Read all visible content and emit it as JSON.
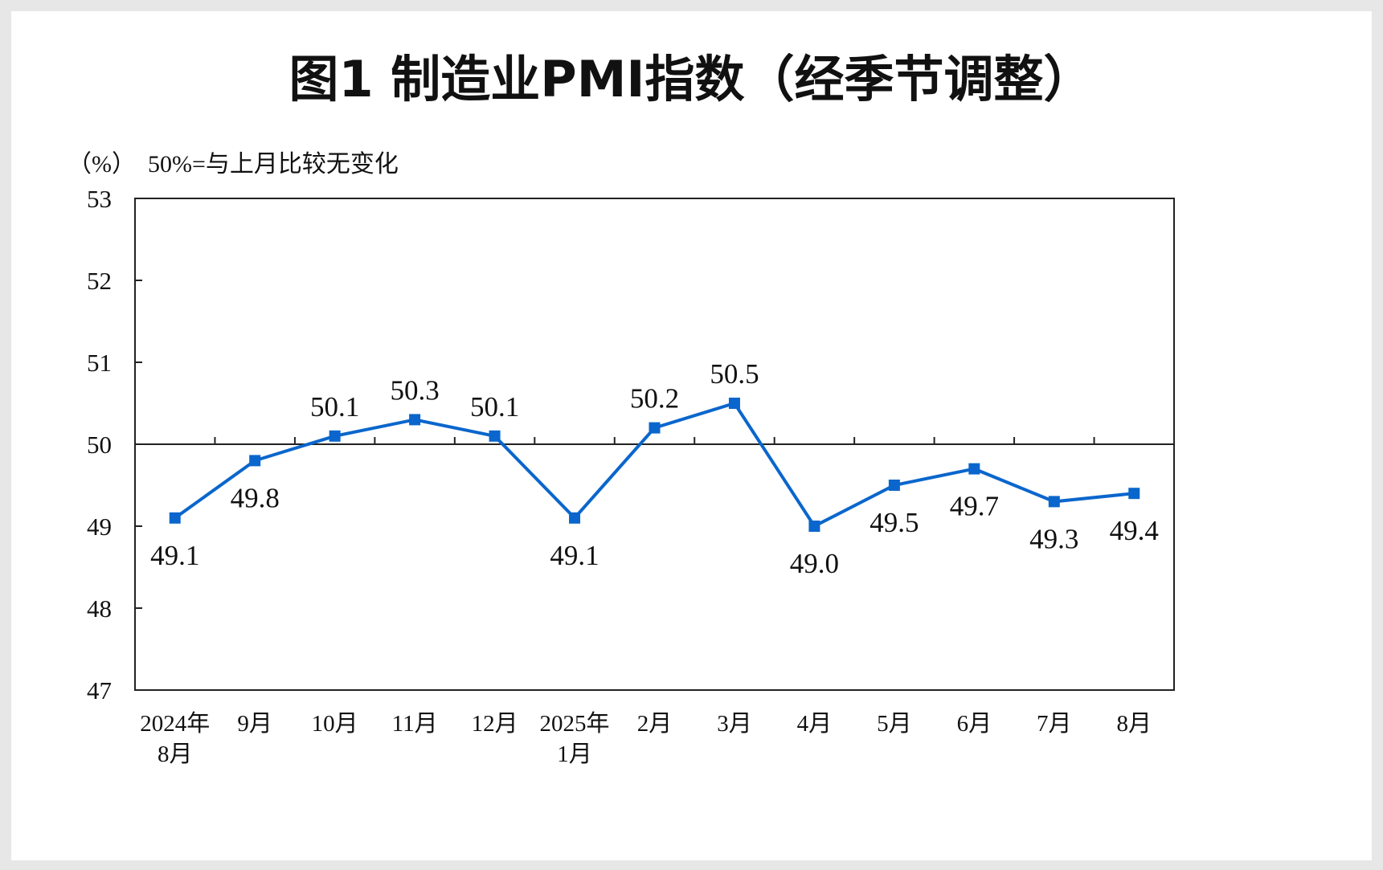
{
  "chart_data": {
    "type": "line",
    "title": "图1  制造业PMI指数（经季节调整）",
    "unit_note": "（%）  50%=与上月比较无变化",
    "categories": [
      [
        "2024年",
        "8月"
      ],
      [
        "9月"
      ],
      [
        "10月"
      ],
      [
        "11月"
      ],
      [
        "12月"
      ],
      [
        "2025年",
        "1月"
      ],
      [
        "2月"
      ],
      [
        "3月"
      ],
      [
        "4月"
      ],
      [
        "5月"
      ],
      [
        "6月"
      ],
      [
        "7月"
      ],
      [
        "8月"
      ]
    ],
    "values": [
      49.1,
      49.8,
      50.1,
      50.3,
      50.1,
      49.1,
      50.2,
      50.5,
      49.0,
      49.5,
      49.7,
      49.3,
      49.4
    ],
    "data_labels": [
      "49.1",
      "49.8",
      "50.1",
      "50.3",
      "50.1",
      "49.1",
      "50.2",
      "50.5",
      "49.0",
      "49.5",
      "49.7",
      "49.3",
      "49.4"
    ],
    "label_positions": [
      "below",
      "below",
      "above",
      "above",
      "above",
      "below",
      "above",
      "above",
      "below",
      "below",
      "below",
      "below",
      "below"
    ],
    "ylim": [
      47,
      53
    ],
    "yticks": [
      "47",
      "48",
      "49",
      "50",
      "51",
      "52",
      "53"
    ],
    "reference_line": 50,
    "line_color": "#0a66cc",
    "marker": "square",
    "grid": false
  }
}
